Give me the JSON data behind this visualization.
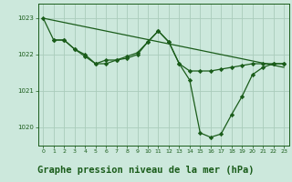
{
  "background_color": "#cce8dc",
  "line_color": "#1a5c1a",
  "grid_color": "#aaccbb",
  "title": "Graphe pression niveau de la mer (hPa)",
  "xlim": [
    -0.5,
    23.5
  ],
  "ylim": [
    1019.5,
    1023.4
  ],
  "yticks": [
    1020,
    1021,
    1022,
    1023
  ],
  "xticks": [
    0,
    1,
    2,
    3,
    4,
    5,
    6,
    7,
    8,
    9,
    10,
    11,
    12,
    13,
    14,
    15,
    16,
    17,
    18,
    19,
    20,
    21,
    22,
    23
  ],
  "straight_line_x": [
    0,
    23
  ],
  "straight_line_y": [
    1023.0,
    1021.65
  ],
  "curve1_x": [
    0,
    1,
    2,
    3,
    4,
    5,
    6,
    7,
    8,
    9,
    10,
    11,
    12,
    13,
    14,
    15,
    16,
    17,
    18,
    19,
    20,
    21,
    22,
    23
  ],
  "curve1_y": [
    1023.0,
    1022.4,
    1022.4,
    1022.15,
    1021.95,
    1021.75,
    1021.85,
    1021.85,
    1021.95,
    1022.05,
    1022.35,
    1022.65,
    1022.35,
    1021.75,
    1021.55,
    1021.55,
    1021.55,
    1021.6,
    1021.65,
    1021.7,
    1021.75,
    1021.75,
    1021.75,
    1021.75
  ],
  "curve2_x": [
    1,
    2,
    3,
    4,
    5,
    6,
    7,
    8,
    9,
    10,
    11,
    12,
    13,
    14,
    15,
    16,
    17,
    18,
    19,
    20,
    21,
    22,
    23
  ],
  "curve2_y": [
    1022.4,
    1022.4,
    1022.15,
    1022.0,
    1021.75,
    1021.75,
    1021.85,
    1021.9,
    1022.0,
    1022.35,
    1022.65,
    1022.35,
    1021.75,
    1021.3,
    1019.85,
    1019.73,
    1019.82,
    1020.35,
    1020.85,
    1021.45,
    1021.65,
    1021.75,
    1021.75
  ],
  "marker": "D",
  "markersize": 2.2,
  "linewidth": 0.9,
  "title_fontsize": 7.5
}
